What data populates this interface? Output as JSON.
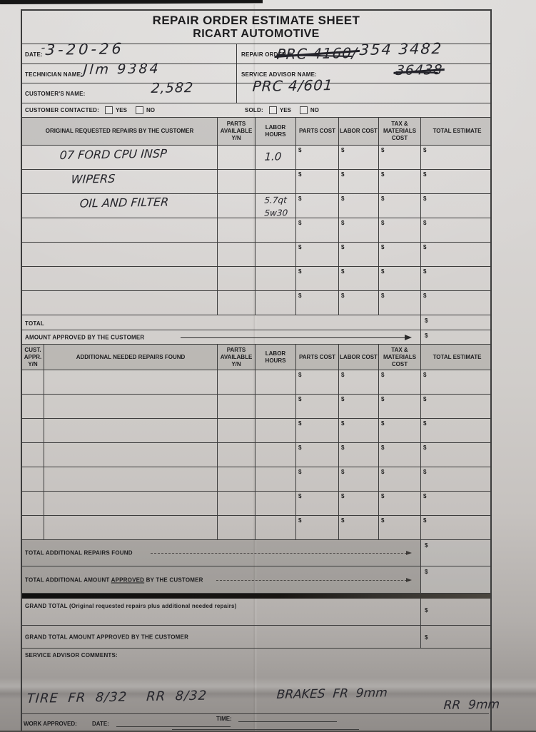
{
  "title": {
    "line1": "REPAIR ORDER ESTIMATE SHEET",
    "line2": "RICART AUTOMOTIVE"
  },
  "fields": {
    "date_label": "DATE:",
    "date_value": "3-20-26",
    "date_tick": "-",
    "ro_label": "REPAIR ORDER #:",
    "ro_crossed": "PRC 4160/",
    "ro_value": "354 3482",
    "tech_label": "TECHNICIAN NAME:",
    "tech_value": "Jlm 9384",
    "advisor_label": "SERVICE ADVISOR NAME:",
    "advisor_crossed": "36438",
    "cust_label": "CUSTOMER'S NAME:",
    "cust_value": "2,582",
    "cust_value2": "PRC 4/601",
    "contacted_label": "CUSTOMER CONTACTED:",
    "sold_label": "SOLD:",
    "yes": "YES",
    "no": "NO"
  },
  "table1": {
    "headers": [
      "ORIGINAL REQUESTED REPAIRS BY THE CUSTOMER",
      "PARTS\nAVAILABLE\nY/N",
      "LABOR\nHOURS",
      "PARTS COST",
      "LABOR COST",
      "TAX &\nMATERIALS\nCOST",
      "TOTAL ESTIMATE"
    ],
    "rows": [
      {
        "desc": "07 FORD CPU INSP",
        "labor": "1.0"
      },
      {
        "desc": "WIPERS",
        "labor": ""
      },
      {
        "desc": "OIL AND FILTER",
        "labor": "5.7qt",
        "labor2": "5w30"
      },
      {
        "desc": "",
        "labor": ""
      },
      {
        "desc": "",
        "labor": ""
      },
      {
        "desc": "",
        "labor": ""
      },
      {
        "desc": "",
        "labor": ""
      }
    ],
    "total_label": "TOTAL",
    "approved_label": "AMOUNT APPROVED BY THE CUSTOMER"
  },
  "table2": {
    "headers": [
      "CUST.\nAPPR.\nY/N",
      "ADDITIONAL NEEDED REPAIRS FOUND",
      "PARTS\nAVAILABLE\nY/N",
      "LABOR\nHOURS",
      "PARTS COST",
      "LABOR COST",
      "TAX &\nMATERIALS\nCOST",
      "TOTAL ESTIMATE"
    ],
    "row_count": 7
  },
  "totals": {
    "add_found": "TOTAL ADDITIONAL REPAIRS FOUND",
    "add_approved_pre": "TOTAL ADDITIONAL AMOUNT ",
    "add_approved_underlined": "APPROVED",
    "add_approved_post": " BY THE CUSTOMER",
    "grand": "GRAND TOTAL (Original requested repairs plus additional needed repairs)",
    "grand_approved": "GRAND TOTAL AMOUNT APPROVED BY THE CUSTOMER"
  },
  "comments_label": "SERVICE ADVISOR COMMENTS:",
  "notes": {
    "tires": "TIRE  FR  8/32    RR  8/32",
    "brakes": "BRAKES  FR  9mm",
    "brakes2": "RR  9mm"
  },
  "footer": {
    "work_approved": "WORK APPROVED:",
    "date": "DATE:",
    "time": "TIME:"
  },
  "misc": {
    "dollar": "$"
  }
}
